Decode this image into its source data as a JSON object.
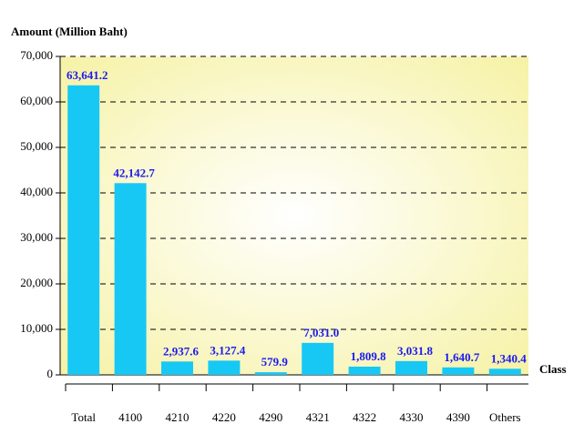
{
  "chart_data": {
    "type": "bar",
    "y_label": "Amount (Million Baht)",
    "x_label": "Class",
    "categories": [
      "Total",
      "4100",
      "4210",
      "4220",
      "4290",
      "4321",
      "4322",
      "4330",
      "4390",
      "Others"
    ],
    "values": [
      63641.2,
      42142.7,
      2937.6,
      3127.4,
      579.9,
      7031.0,
      1809.8,
      3031.8,
      1640.7,
      1340.4
    ],
    "value_labels": [
      "63,641.2",
      "42,142.7",
      "2,937.6",
      "3,127.4",
      "579.9",
      "7,031.0",
      "1,809.8",
      "3,031.8",
      "1,640.7",
      "1,340.4"
    ],
    "color": "#17c8f4",
    "ylim": [
      0,
      70000
    ],
    "yticks": [
      0,
      {
        "value": 10000,
        "label": "10,000"
      },
      {
        "value": 20000,
        "label": "20,000"
      },
      {
        "value": 30000,
        "label": "30,000"
      },
      {
        "value": 40000,
        "label": "40,000"
      },
      {
        "value": 50000,
        "label": "50,000"
      },
      {
        "value": 60000,
        "label": "60,000"
      },
      {
        "value": 70000,
        "label": "70,000"
      }
    ],
    "grid": true
  }
}
